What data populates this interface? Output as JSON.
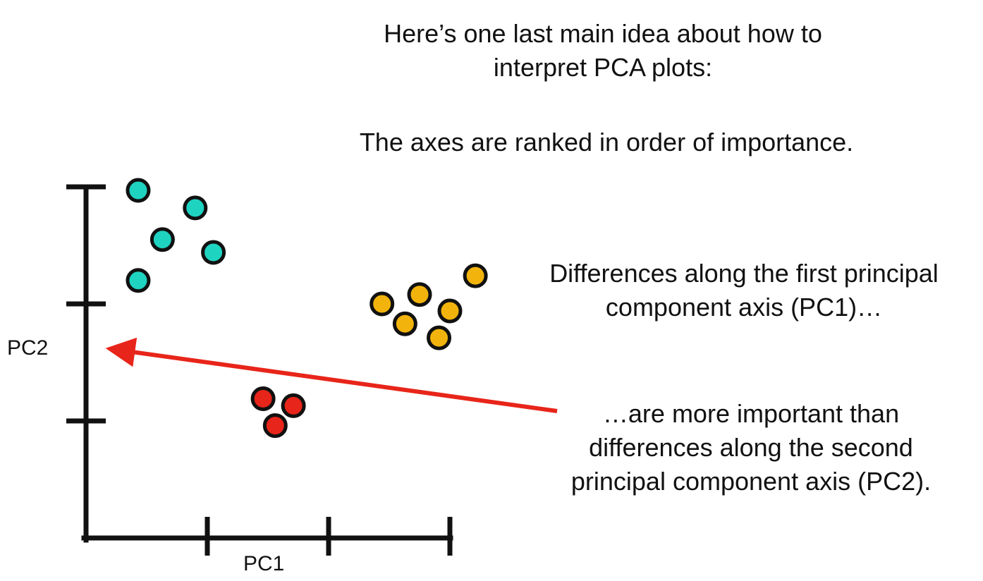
{
  "slide": {
    "heading_line1": "Here’s one last main idea about how to",
    "heading_line2": "interpret PCA plots:",
    "subheading": "The axes are ranked in order of importance.",
    "callout_top_line1": "Differences along the first principal",
    "callout_top_line2": "component axis (PC1)…",
    "callout_bottom_line1": "…are more important than",
    "callout_bottom_line2": "differences along the second",
    "callout_bottom_line3": "principal component axis (PC2)."
  },
  "chart_data": {
    "type": "scatter",
    "title": "",
    "xlabel": "PC1",
    "ylabel": "PC2",
    "xlim": [
      0,
      3
    ],
    "ylim": [
      0,
      3
    ],
    "x_ticks": [
      0,
      1,
      2,
      3
    ],
    "y_ticks": [
      0,
      1,
      2,
      3
    ],
    "grid": false,
    "legend": "none",
    "series": [
      {
        "color": "#1fd3c1",
        "points": [
          {
            "x": 0.43,
            "y": 2.97
          },
          {
            "x": 0.9,
            "y": 2.82
          },
          {
            "x": 0.63,
            "y": 2.55
          },
          {
            "x": 1.05,
            "y": 2.44
          },
          {
            "x": 0.43,
            "y": 2.2
          }
        ]
      },
      {
        "color": "#f2b40c",
        "points": [
          {
            "x": 3.21,
            "y": 2.24
          },
          {
            "x": 2.75,
            "y": 2.08
          },
          {
            "x": 2.44,
            "y": 2.0
          },
          {
            "x": 3.0,
            "y": 1.94
          },
          {
            "x": 2.63,
            "y": 1.83
          },
          {
            "x": 2.91,
            "y": 1.71
          }
        ]
      },
      {
        "color": "#e8251a",
        "points": [
          {
            "x": 1.46,
            "y": 1.19
          },
          {
            "x": 1.71,
            "y": 1.13
          },
          {
            "x": 1.56,
            "y": 0.96
          }
        ]
      }
    ]
  }
}
